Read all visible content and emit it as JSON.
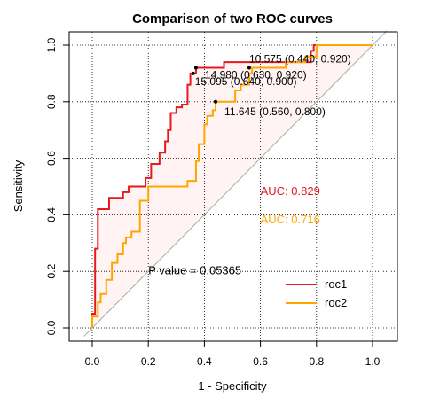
{
  "chart_data": {
    "type": "line",
    "title": "Comparison of two ROC curves",
    "xlabel": "1 - Specificity",
    "ylabel": "Sensitivity",
    "xlim": [
      -0.05,
      1.08
    ],
    "ylim": [
      -0.02,
      1.02
    ],
    "xticks": [
      "0.0",
      "0.2",
      "0.4",
      "0.6",
      "0.8",
      "1.0"
    ],
    "yticks": [
      "0.0",
      "0.2",
      "0.4",
      "0.6",
      "0.8",
      "1.0"
    ],
    "grid": true,
    "colors": {
      "roc1": "#e41a1c",
      "roc2": "#ffa500",
      "fill": "#fff3f3",
      "diagonal": "#a9a9a9"
    },
    "series": [
      {
        "name": "roc1",
        "points": [
          [
            0,
            0
          ],
          [
            0,
            0.05
          ],
          [
            0.01,
            0.05
          ],
          [
            0.01,
            0.28
          ],
          [
            0.02,
            0.28
          ],
          [
            0.02,
            0.42
          ],
          [
            0.06,
            0.42
          ],
          [
            0.06,
            0.46
          ],
          [
            0.11,
            0.46
          ],
          [
            0.11,
            0.48
          ],
          [
            0.13,
            0.48
          ],
          [
            0.13,
            0.5
          ],
          [
            0.19,
            0.5
          ],
          [
            0.19,
            0.53
          ],
          [
            0.21,
            0.53
          ],
          [
            0.21,
            0.58
          ],
          [
            0.24,
            0.58
          ],
          [
            0.24,
            0.62
          ],
          [
            0.26,
            0.62
          ],
          [
            0.26,
            0.66
          ],
          [
            0.27,
            0.66
          ],
          [
            0.27,
            0.7
          ],
          [
            0.28,
            0.7
          ],
          [
            0.28,
            0.76
          ],
          [
            0.3,
            0.76
          ],
          [
            0.3,
            0.78
          ],
          [
            0.32,
            0.78
          ],
          [
            0.32,
            0.79
          ],
          [
            0.33,
            0.79
          ],
          [
            0.34,
            0.79
          ],
          [
            0.34,
            0.86
          ],
          [
            0.35,
            0.86
          ],
          [
            0.35,
            0.9
          ],
          [
            0.37,
            0.9
          ],
          [
            0.37,
            0.92
          ],
          [
            0.44,
            0.92
          ],
          [
            0.47,
            0.92
          ],
          [
            0.47,
            0.94
          ],
          [
            0.78,
            0.94
          ],
          [
            0.78,
            0.98
          ],
          [
            0.79,
            0.98
          ],
          [
            0.79,
            1
          ],
          [
            1,
            1
          ]
        ]
      },
      {
        "name": "roc2",
        "points": [
          [
            0,
            0
          ],
          [
            0,
            0.04
          ],
          [
            0.02,
            0.04
          ],
          [
            0.02,
            0.09
          ],
          [
            0.03,
            0.09
          ],
          [
            0.03,
            0.12
          ],
          [
            0.05,
            0.12
          ],
          [
            0.05,
            0.17
          ],
          [
            0.07,
            0.17
          ],
          [
            0.07,
            0.23
          ],
          [
            0.09,
            0.23
          ],
          [
            0.09,
            0.26
          ],
          [
            0.11,
            0.26
          ],
          [
            0.11,
            0.3
          ],
          [
            0.12,
            0.3
          ],
          [
            0.12,
            0.32
          ],
          [
            0.14,
            0.32
          ],
          [
            0.14,
            0.34
          ],
          [
            0.17,
            0.34
          ],
          [
            0.17,
            0.45
          ],
          [
            0.2,
            0.45
          ],
          [
            0.2,
            0.5
          ],
          [
            0.34,
            0.5
          ],
          [
            0.34,
            0.52
          ],
          [
            0.37,
            0.52
          ],
          [
            0.37,
            0.59
          ],
          [
            0.38,
            0.59
          ],
          [
            0.38,
            0.65
          ],
          [
            0.4,
            0.65
          ],
          [
            0.4,
            0.72
          ],
          [
            0.41,
            0.72
          ],
          [
            0.41,
            0.75
          ],
          [
            0.43,
            0.75
          ],
          [
            0.43,
            0.77
          ],
          [
            0.44,
            0.77
          ],
          [
            0.44,
            0.8
          ],
          [
            0.51,
            0.8
          ],
          [
            0.51,
            0.84
          ],
          [
            0.53,
            0.84
          ],
          [
            0.53,
            0.86
          ],
          [
            0.56,
            0.86
          ],
          [
            0.56,
            0.9
          ],
          [
            0.57,
            0.9
          ],
          [
            0.57,
            0.92
          ],
          [
            0.61,
            0.92
          ],
          [
            0.69,
            0.92
          ],
          [
            0.69,
            0.94
          ],
          [
            0.76,
            0.94
          ],
          [
            0.76,
            0.96
          ],
          [
            0.8,
            0.96
          ],
          [
            0.8,
            1
          ],
          [
            1,
            1
          ]
        ]
      }
    ],
    "threshold_points": [
      {
        "label": "14.980 (0.630, 0.920)",
        "series": "roc1",
        "x": 0.37,
        "y": 0.92
      },
      {
        "label": "15.095 (0.640, 0.900)",
        "series": "roc1",
        "x": 0.36,
        "y": 0.9
      },
      {
        "label": "10.575 (0.440, 0.920)",
        "series": "roc2",
        "x": 0.56,
        "y": 0.92
      },
      {
        "label": "11.645 (0.560, 0.800)",
        "series": "roc2",
        "x": 0.44,
        "y": 0.8
      }
    ],
    "auc": [
      {
        "text": "AUC: 0.829",
        "color": "#e41a1c"
      },
      {
        "text": "AUC: 0.716",
        "color": "#ffa500"
      }
    ],
    "p_value_text": "P value = 0.05365",
    "legend": {
      "position": "bottom-right",
      "entries": [
        {
          "label": "roc1",
          "color": "#e41a1c"
        },
        {
          "label": "roc2",
          "color": "#ffa500"
        }
      ]
    }
  }
}
